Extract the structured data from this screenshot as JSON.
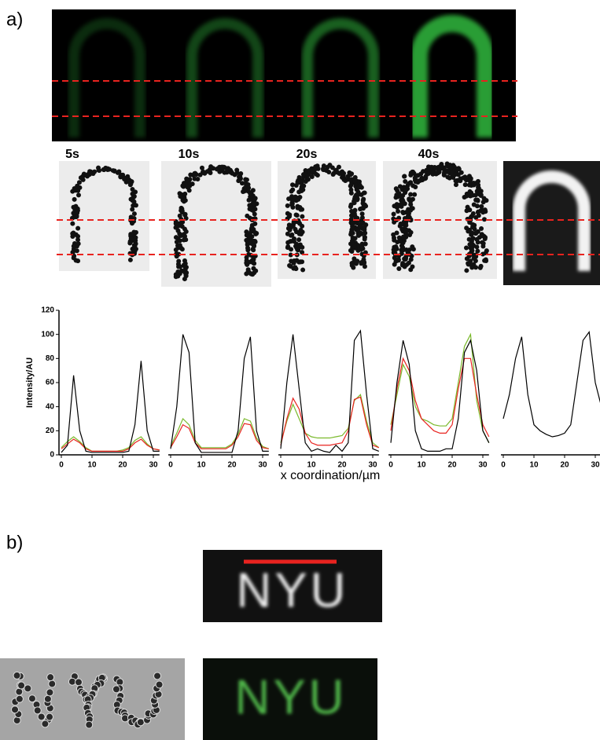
{
  "panel_a": {
    "label": "a)",
    "time_labels": [
      "5s",
      "10s",
      "20s",
      "40s"
    ]
  },
  "panel_b": {
    "label": "b)",
    "text": "NYU"
  },
  "chart_data": [
    {
      "type": "line",
      "ylabel": "Intensity/AU",
      "xlabel": "x coordination/µm",
      "x": [
        0,
        2,
        4,
        6,
        8,
        10,
        12,
        14,
        16,
        18,
        20,
        22,
        24,
        26,
        28,
        30,
        32
      ],
      "xlim": [
        0,
        32
      ],
      "xticks": [
        0,
        10,
        20,
        30
      ],
      "ylim": [
        0,
        120
      ],
      "yticks": [
        0,
        20,
        40,
        60,
        80,
        100,
        120
      ],
      "series": [
        {
          "color": "#000000",
          "values": [
            2,
            8,
            66,
            20,
            3,
            2,
            2,
            2,
            2,
            2,
            2,
            3,
            25,
            78,
            20,
            3,
            3
          ]
        },
        {
          "color": "#e8231f",
          "values": [
            5,
            9,
            13,
            10,
            5,
            3,
            3,
            3,
            3,
            3,
            3,
            5,
            10,
            13,
            8,
            5,
            4
          ]
        },
        {
          "color": "#7ab92b",
          "values": [
            6,
            11,
            15,
            11,
            6,
            3,
            3,
            3,
            3,
            3,
            4,
            6,
            12,
            15,
            9,
            5,
            4
          ]
        }
      ]
    },
    {
      "type": "line",
      "x": [
        0,
        2,
        4,
        6,
        8,
        10,
        12,
        14,
        16,
        18,
        20,
        22,
        24,
        26,
        28,
        30,
        32
      ],
      "xlim": [
        0,
        32
      ],
      "xticks": [
        0,
        10,
        20,
        30
      ],
      "ylim": [
        0,
        120
      ],
      "series": [
        {
          "color": "#000000",
          "values": [
            5,
            40,
            100,
            85,
            10,
            2,
            2,
            2,
            2,
            2,
            2,
            20,
            80,
            98,
            20,
            3,
            3
          ]
        },
        {
          "color": "#e8231f",
          "values": [
            6,
            15,
            25,
            22,
            10,
            5,
            5,
            5,
            5,
            5,
            8,
            15,
            26,
            25,
            12,
            6,
            5
          ]
        },
        {
          "color": "#7ab92b",
          "values": [
            7,
            18,
            30,
            25,
            12,
            6,
            6,
            6,
            6,
            6,
            9,
            17,
            30,
            28,
            14,
            7,
            5
          ]
        }
      ]
    },
    {
      "type": "line",
      "x": [
        0,
        2,
        4,
        6,
        8,
        10,
        12,
        14,
        16,
        18,
        20,
        22,
        24,
        26,
        28,
        30,
        32
      ],
      "xlim": [
        0,
        32
      ],
      "xticks": [
        0,
        10,
        20,
        30
      ],
      "ylim": [
        0,
        120
      ],
      "series": [
        {
          "color": "#000000",
          "values": [
            5,
            60,
            100,
            55,
            10,
            3,
            5,
            3,
            2,
            8,
            3,
            10,
            95,
            103,
            50,
            5,
            3
          ]
        },
        {
          "color": "#e8231f",
          "values": [
            8,
            30,
            47,
            38,
            18,
            10,
            8,
            8,
            8,
            9,
            10,
            20,
            46,
            48,
            25,
            8,
            6
          ]
        },
        {
          "color": "#7ab92b",
          "values": [
            10,
            28,
            42,
            30,
            18,
            15,
            14,
            14,
            14,
            15,
            16,
            22,
            45,
            50,
            28,
            10,
            6
          ]
        }
      ]
    },
    {
      "type": "line",
      "x": [
        0,
        2,
        4,
        6,
        8,
        10,
        12,
        14,
        16,
        18,
        20,
        22,
        24,
        26,
        28,
        30,
        32
      ],
      "xlim": [
        0,
        32
      ],
      "xticks": [
        0,
        10,
        20,
        30
      ],
      "ylim": [
        0,
        120
      ],
      "series": [
        {
          "color": "#000000",
          "values": [
            10,
            60,
            95,
            75,
            20,
            5,
            3,
            3,
            3,
            5,
            5,
            30,
            85,
            95,
            70,
            20,
            10
          ]
        },
        {
          "color": "#e8231f",
          "values": [
            20,
            55,
            80,
            70,
            45,
            30,
            25,
            20,
            18,
            18,
            25,
            55,
            80,
            80,
            50,
            25,
            15
          ]
        },
        {
          "color": "#7ab92b",
          "values": [
            25,
            50,
            75,
            65,
            40,
            30,
            28,
            25,
            24,
            24,
            30,
            60,
            90,
            100,
            45,
            20,
            10
          ]
        }
      ]
    },
    {
      "type": "line",
      "x": [
        0,
        2,
        4,
        6,
        8,
        10,
        12,
        14,
        16,
        18,
        20,
        22,
        24,
        26,
        28,
        30,
        32
      ],
      "xlim": [
        0,
        32
      ],
      "xticks": [
        0,
        10,
        20,
        30
      ],
      "ylim": [
        0,
        120
      ],
      "series": [
        {
          "color": "#000000",
          "values": [
            30,
            50,
            80,
            98,
            50,
            25,
            20,
            17,
            15,
            16,
            18,
            25,
            60,
            95,
            102,
            60,
            40
          ]
        }
      ]
    }
  ]
}
